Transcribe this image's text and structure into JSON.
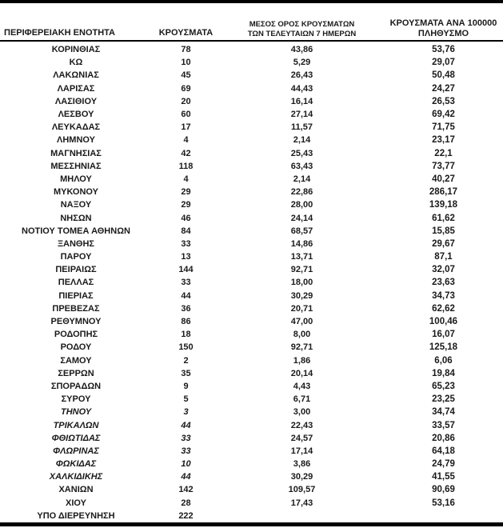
{
  "table": {
    "header": {
      "col1": "ΠΕΡΙΦΕΡΕΙΑΚΗ ΕΝΟΤΗΤΑ",
      "col2": "ΚΡΟΥΣΜΑΤΑ",
      "col3_line1": "ΜΕΣΟΣ ΟΡΟΣ ΚΡΟΥΣΜΑΤΩΝ",
      "col3_line2": "ΤΩΝ ΤΕΛΕΥΤΑΙΩΝ 7 ΗΜΕΡΩΝ",
      "col4_line1": "ΚΡΟΥΣΜΑΤΑ ΑΝΑ 100000",
      "col4_line2": "ΠΛΗΘΥΣΜΟ"
    },
    "rows": [
      {
        "name": "ΚΟΡΙΝΘΙΑΣ",
        "cases": "78",
        "avg7": "43,86",
        "per100k": "53,76",
        "italic": false
      },
      {
        "name": "ΚΩ",
        "cases": "10",
        "avg7": "5,29",
        "per100k": "29,07",
        "italic": false
      },
      {
        "name": "ΛΑΚΩΝΙΑΣ",
        "cases": "45",
        "avg7": "26,43",
        "per100k": "50,48",
        "italic": false
      },
      {
        "name": "ΛΑΡΙΣΑΣ",
        "cases": "69",
        "avg7": "44,43",
        "per100k": "24,27",
        "italic": false
      },
      {
        "name": "ΛΑΣΙΘΙΟΥ",
        "cases": "20",
        "avg7": "16,14",
        "per100k": "26,53",
        "italic": false
      },
      {
        "name": "ΛΕΣΒΟΥ",
        "cases": "60",
        "avg7": "27,14",
        "per100k": "69,42",
        "italic": false
      },
      {
        "name": "ΛΕΥΚΑΔΑΣ",
        "cases": "17",
        "avg7": "11,57",
        "per100k": "71,75",
        "italic": false
      },
      {
        "name": "ΛΗΜΝΟΥ",
        "cases": "4",
        "avg7": "2,14",
        "per100k": "23,17",
        "italic": false
      },
      {
        "name": "ΜΑΓΝΗΣΙΑΣ",
        "cases": "42",
        "avg7": "25,43",
        "per100k": "22,1",
        "italic": false
      },
      {
        "name": "ΜΕΣΣΗΝΙΑΣ",
        "cases": "118",
        "avg7": "63,43",
        "per100k": "73,77",
        "italic": false
      },
      {
        "name": "ΜΗΛΟΥ",
        "cases": "4",
        "avg7": "2,14",
        "per100k": "40,27",
        "italic": false
      },
      {
        "name": "ΜΥΚΟΝΟΥ",
        "cases": "29",
        "avg7": "22,86",
        "per100k": "286,17",
        "italic": false
      },
      {
        "name": "ΝΑΞΟΥ",
        "cases": "29",
        "avg7": "28,00",
        "per100k": "139,18",
        "italic": false
      },
      {
        "name": "ΝΗΣΩΝ",
        "cases": "46",
        "avg7": "24,14",
        "per100k": "61,62",
        "italic": false
      },
      {
        "name": "ΝΟΤΙΟΥ ΤΟΜΕΑ ΑΘΗΝΩΝ",
        "cases": "84",
        "avg7": "68,57",
        "per100k": "15,85",
        "italic": false
      },
      {
        "name": "ΞΑΝΘΗΣ",
        "cases": "33",
        "avg7": "14,86",
        "per100k": "29,67",
        "italic": false
      },
      {
        "name": "ΠΑΡΟΥ",
        "cases": "13",
        "avg7": "13,71",
        "per100k": "87,1",
        "italic": false
      },
      {
        "name": "ΠΕΙΡΑΙΩΣ",
        "cases": "144",
        "avg7": "92,71",
        "per100k": "32,07",
        "italic": false
      },
      {
        "name": "ΠΕΛΛΑΣ",
        "cases": "33",
        "avg7": "18,00",
        "per100k": "23,63",
        "italic": false
      },
      {
        "name": "ΠΙΕΡΙΑΣ",
        "cases": "44",
        "avg7": "30,29",
        "per100k": "34,73",
        "italic": false
      },
      {
        "name": "ΠΡΕΒΕΖΑΣ",
        "cases": "36",
        "avg7": "20,71",
        "per100k": "62,62",
        "italic": false
      },
      {
        "name": "ΡΕΘΥΜΝΟΥ",
        "cases": "86",
        "avg7": "47,00",
        "per100k": "100,46",
        "italic": false
      },
      {
        "name": "ΡΟΔΟΠΗΣ",
        "cases": "18",
        "avg7": "8,00",
        "per100k": "16,07",
        "italic": false
      },
      {
        "name": "ΡΟΔΟΥ",
        "cases": "150",
        "avg7": "92,71",
        "per100k": "125,18",
        "italic": false
      },
      {
        "name": "ΣΑΜΟΥ",
        "cases": "2",
        "avg7": "1,86",
        "per100k": "6,06",
        "italic": false
      },
      {
        "name": "ΣΕΡΡΩΝ",
        "cases": "35",
        "avg7": "20,14",
        "per100k": "19,84",
        "italic": false
      },
      {
        "name": "ΣΠΟΡΑΔΩΝ",
        "cases": "9",
        "avg7": "4,43",
        "per100k": "65,23",
        "italic": false
      },
      {
        "name": "ΣΥΡΟΥ",
        "cases": "5",
        "avg7": "6,71",
        "per100k": "23,25",
        "italic": false
      },
      {
        "name": "ΤΗΝΟΥ",
        "cases": "3",
        "avg7": "3,00",
        "per100k": "34,74",
        "italic": true
      },
      {
        "name": "ΤΡΙΚΑΛΩΝ",
        "cases": "44",
        "avg7": "22,43",
        "per100k": "33,57",
        "italic": true
      },
      {
        "name": "ΦΘΙΩΤΙΔΑΣ",
        "cases": "33",
        "avg7": "24,57",
        "per100k": "20,86",
        "italic": true
      },
      {
        "name": "ΦΛΩΡΙΝΑΣ",
        "cases": "33",
        "avg7": "17,14",
        "per100k": "64,18",
        "italic": true
      },
      {
        "name": "ΦΩΚΙΔΑΣ",
        "cases": "10",
        "avg7": "3,86",
        "per100k": "24,79",
        "italic": true
      },
      {
        "name": "ΧΑΛΚΙΔΙΚΗΣ",
        "cases": "44",
        "avg7": "30,29",
        "per100k": "41,55",
        "italic": true
      },
      {
        "name": "ΧΑΝΙΩΝ",
        "cases": "142",
        "avg7": "109,57",
        "per100k": "90,69",
        "italic": false
      },
      {
        "name": "ΧΙΟΥ",
        "cases": "28",
        "avg7": "17,43",
        "per100k": "53,16",
        "italic": false
      },
      {
        "name": "ΥΠΟ ΔΙΕΡΕΥΝΗΣΗ",
        "cases": "222",
        "avg7": "",
        "per100k": "",
        "italic": false
      }
    ]
  },
  "colors": {
    "text": "#1a1a1a",
    "rule": "#000000",
    "background": "#ffffff"
  }
}
